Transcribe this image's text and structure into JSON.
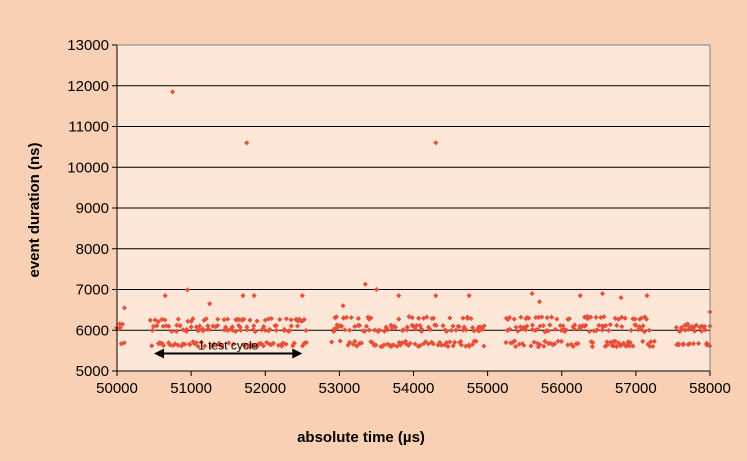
{
  "chart_data": {
    "type": "scatter",
    "xlabel": "absolute time (µs)",
    "ylabel": "event duration (ns)",
    "xlim": [
      50000,
      58000
    ],
    "ylim": [
      5000,
      13000
    ],
    "x_ticks": [
      "50000",
      "51000",
      "52000",
      "53000",
      "54000",
      "55000",
      "56000",
      "57000",
      "58000"
    ],
    "y_ticks": [
      "5000",
      "6000",
      "7000",
      "8000",
      "9000",
      "10000",
      "11000",
      "12000",
      "13000"
    ],
    "grid": "horizontal",
    "colors": {
      "background": "#FAD0B5",
      "plot_area": "#FDE7D9",
      "marker": "#E8503A",
      "gridline": "#000000"
    },
    "annotation": {
      "text": "1 test cycle",
      "x_start": 50500,
      "x_end": 52500,
      "y": 5430
    },
    "outliers": [
      {
        "x": 50750,
        "y": 11850
      },
      {
        "x": 51750,
        "y": 10600
      },
      {
        "x": 54300,
        "y": 10600
      },
      {
        "x": 50950,
        "y": 6990
      },
      {
        "x": 53350,
        "y": 7130
      },
      {
        "x": 53500,
        "y": 7000
      }
    ],
    "segments": [
      {
        "x_start": 50000,
        "x_end": 50100,
        "y_levels": [
          5650,
          5700,
          6050,
          6150
        ]
      },
      {
        "x_start": 50450,
        "x_end": 52550,
        "y_levels": [
          5630,
          5680,
          6000,
          6100,
          6250
        ]
      },
      {
        "x_start": 52900,
        "x_end": 54950,
        "y_levels": [
          5630,
          5700,
          6000,
          6100,
          6300
        ]
      },
      {
        "x_start": 55250,
        "x_end": 57250,
        "y_levels": [
          5630,
          5700,
          6000,
          6100,
          6300
        ]
      },
      {
        "x_start": 57550,
        "x_end": 58000,
        "y_levels": [
          5650,
          6000,
          6100
        ]
      }
    ],
    "high_points": [
      {
        "x": 50100,
        "y": 6550
      },
      {
        "x": 50650,
        "y": 6850
      },
      {
        "x": 51250,
        "y": 6650
      },
      {
        "x": 51700,
        "y": 6850
      },
      {
        "x": 51850,
        "y": 6850
      },
      {
        "x": 52500,
        "y": 6850
      },
      {
        "x": 53050,
        "y": 6600
      },
      {
        "x": 53800,
        "y": 6850
      },
      {
        "x": 54300,
        "y": 6850
      },
      {
        "x": 54750,
        "y": 6850
      },
      {
        "x": 55600,
        "y": 6900
      },
      {
        "x": 55700,
        "y": 6700
      },
      {
        "x": 56250,
        "y": 6850
      },
      {
        "x": 56550,
        "y": 6900
      },
      {
        "x": 56800,
        "y": 6800
      },
      {
        "x": 57150,
        "y": 6850
      },
      {
        "x": 57700,
        "y": 6150
      },
      {
        "x": 58000,
        "y": 6450
      }
    ]
  }
}
